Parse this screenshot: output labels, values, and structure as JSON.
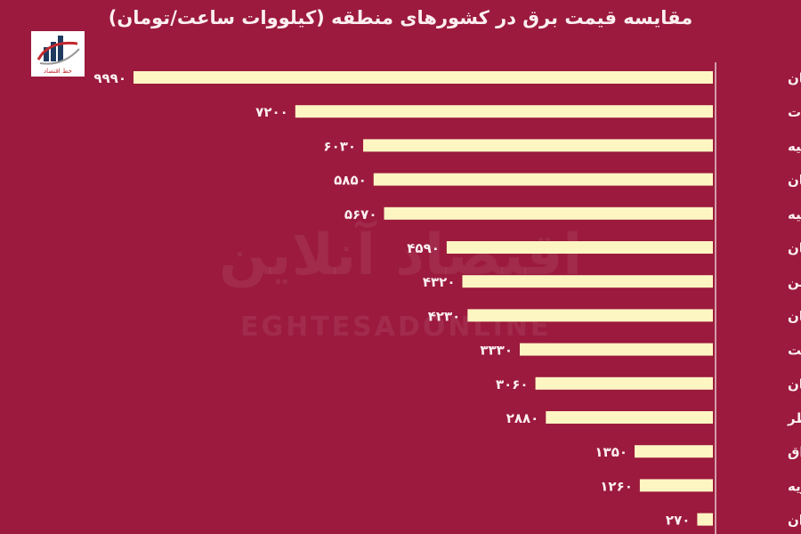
{
  "chart_data": {
    "type": "bar",
    "orientation": "horizontal",
    "title": "مقایسه قیمت برق در کشورهای منطقه (کیلووات ساعت/تومان)",
    "categories": [
      "ارمنستان",
      "امارات",
      "ترکیه",
      "پاکستان",
      "روسیه",
      "عربستان",
      "بحرین",
      "آذربایجان",
      "کویت",
      "ازبکستان",
      "قطر",
      "عراق",
      "سوریه",
      "ایران"
    ],
    "values": [
      9990,
      7200,
      6030,
      5850,
      5670,
      4590,
      4320,
      4230,
      3330,
      3060,
      2880,
      1350,
      1260,
      270
    ],
    "value_labels": [
      "۹۹۹۰",
      "۷۲۰۰",
      "۶۰۳۰",
      "۵۸۵۰",
      "۵۶۷۰",
      "۴۵۹۰",
      "۴۳۲۰",
      "۴۲۳۰",
      "۳۳۳۰",
      "۳۰۶۰",
      "۲۸۸۰",
      "۱۳۵۰",
      "۱۲۶۰",
      "۲۷۰"
    ],
    "xlim": [
      0,
      10000
    ],
    "grid": false,
    "bar_color": "#fdf6c3",
    "background_color": "#9b1a3d"
  },
  "watermark": {
    "fa": "اقتصاد آنلاین",
    "en": "EGHTESADONLINE"
  },
  "logo": {
    "text": "خط اقتصاد"
  }
}
